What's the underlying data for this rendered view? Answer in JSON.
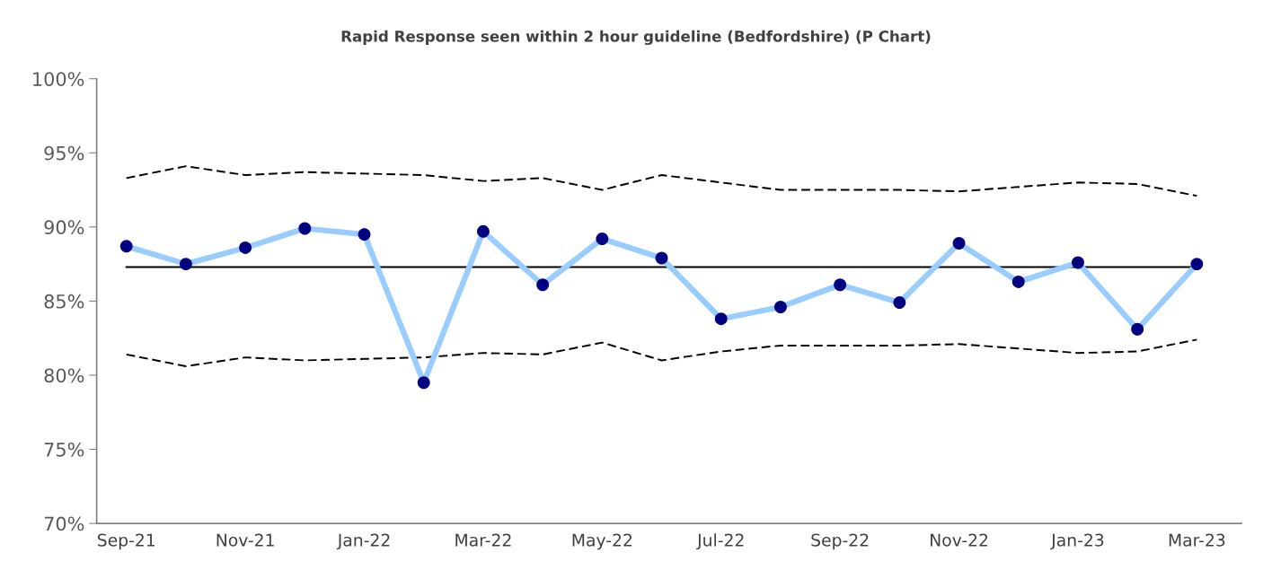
{
  "chart_data": {
    "type": "line",
    "title": "Rapid Response seen within 2 hour guideline (Bedfordshire) (P Chart)",
    "categories": [
      "Sep-21",
      null,
      "Nov-21",
      null,
      "Jan-22",
      null,
      "Mar-22",
      null,
      "May-22",
      null,
      "Jul-22",
      null,
      "Sep-22",
      null,
      "Nov-22",
      null,
      "Jan-23",
      null,
      "Mar-23"
    ],
    "series": [
      {
        "color": "#000000",
        "line_style": "dashed",
        "marker": "none",
        "values": [
          93.3,
          94.1,
          93.5,
          93.7,
          93.6,
          93.5,
          93.1,
          93.3,
          92.5,
          93.5,
          93.0,
          92.5,
          92.5,
          92.5,
          92.4,
          92.7,
          93.0,
          92.9,
          92.1
        ]
      },
      {
        "color": "#000000",
        "line_style": "dashed",
        "marker": "none",
        "values": [
          81.4,
          80.6,
          81.2,
          81.0,
          81.1,
          81.2,
          81.5,
          81.4,
          82.2,
          81.0,
          81.6,
          82.0,
          82.0,
          82.0,
          82.1,
          81.8,
          81.5,
          81.6,
          82.4
        ]
      },
      {
        "color": "#000000",
        "line_style": "solid",
        "marker": "none",
        "values": [
          87.3,
          87.3,
          87.3,
          87.3,
          87.3,
          87.3,
          87.3,
          87.3,
          87.3,
          87.3,
          87.3,
          87.3,
          87.3,
          87.3,
          87.3,
          87.3,
          87.3,
          87.3,
          87.3
        ]
      },
      {
        "color": "#99ccff",
        "colors": [
          "#000080",
          "#000080",
          "#000080",
          "#000080",
          "#000080",
          "#000080",
          "#000080",
          "#000080",
          "#000080",
          "#000080",
          "#000080",
          "#000080",
          "#000080",
          "#000080",
          "#000080",
          "#000080",
          "#000080",
          "#000080",
          "#000080"
        ],
        "line_style": "solid",
        "marker": "circle",
        "values": [
          88.7,
          87.5,
          88.6,
          89.9,
          89.5,
          79.5,
          89.7,
          86.1,
          89.2,
          87.9,
          83.8,
          84.6,
          86.1,
          84.9,
          88.9,
          86.3,
          87.6,
          83.1,
          87.5
        ]
      }
    ],
    "ylim": [
      70,
      100
    ],
    "yticks": [
      {
        "value": 70,
        "label": "70%"
      },
      {
        "value": 75,
        "label": "75%"
      },
      {
        "value": 80,
        "label": "80%"
      },
      {
        "value": 85,
        "label": "85%"
      },
      {
        "value": 90,
        "label": "90%"
      },
      {
        "value": 95,
        "label": "95%"
      },
      {
        "value": 100,
        "label": "100%"
      }
    ],
    "grid": false,
    "legend": false
  }
}
